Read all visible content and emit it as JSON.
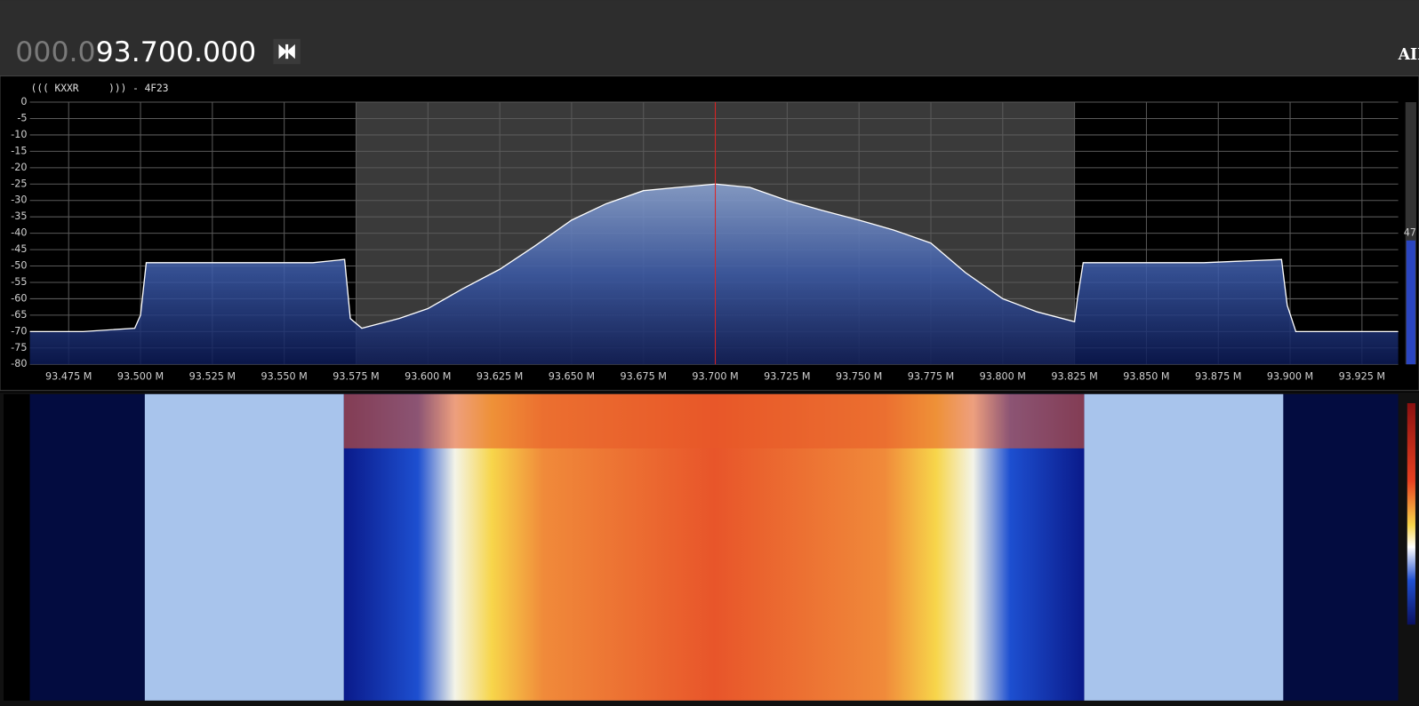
{
  "header": {
    "frequency_dim": "000.0",
    "frequency_bright": "93.700.000",
    "mode_label": "AII"
  },
  "chart_data": {
    "type": "line",
    "title": "((( KXXR     ))) - 4F23",
    "x": [
      93.4615,
      93.48,
      93.498,
      93.5,
      93.502,
      93.52,
      93.54,
      93.56,
      93.571,
      93.573,
      93.577,
      93.59,
      93.6,
      93.612,
      93.625,
      93.637,
      93.65,
      93.662,
      93.675,
      93.687,
      93.7,
      93.712,
      93.725,
      93.737,
      93.75,
      93.762,
      93.775,
      93.787,
      93.8,
      93.812,
      93.825,
      93.826,
      93.828,
      93.85,
      93.87,
      93.897,
      93.899,
      93.902,
      93.92,
      93.9376
    ],
    "values": [
      -70,
      -70,
      -69,
      -65,
      -49,
      -49,
      -49,
      -49,
      -48,
      -66,
      -69,
      -66,
      -63,
      -57,
      -51,
      -44,
      -36,
      -31,
      -27,
      -26,
      -25,
      -26,
      -30,
      -33,
      -36,
      -39,
      -43,
      -52,
      -60,
      -64,
      -67,
      -60,
      -49,
      -49,
      -49,
      -48,
      -62,
      -70,
      -70,
      -70
    ],
    "xlim": [
      93.4615,
      93.9376
    ],
    "ylim": [
      -80,
      0
    ],
    "yticks": [
      0,
      -5,
      -10,
      -15,
      -20,
      -25,
      -30,
      -35,
      -40,
      -45,
      -50,
      -55,
      -60,
      -65,
      -70,
      -75,
      -80
    ],
    "xticks": [
      {
        "value": 93.475,
        "label": "93.475 M"
      },
      {
        "value": 93.5,
        "label": "93.500 M"
      },
      {
        "value": 93.525,
        "label": "93.525 M"
      },
      {
        "value": 93.55,
        "label": "93.550 M"
      },
      {
        "value": 93.575,
        "label": "93.575 M"
      },
      {
        "value": 93.6,
        "label": "93.600 M"
      },
      {
        "value": 93.625,
        "label": "93.625 M"
      },
      {
        "value": 93.65,
        "label": "93.650 M"
      },
      {
        "value": 93.675,
        "label": "93.675 M"
      },
      {
        "value": 93.7,
        "label": "93.700 M"
      },
      {
        "value": 93.725,
        "label": "93.725 M"
      },
      {
        "value": 93.75,
        "label": "93.750 M"
      },
      {
        "value": 93.775,
        "label": "93.775 M"
      },
      {
        "value": 93.8,
        "label": "93.800 M"
      },
      {
        "value": 93.825,
        "label": "93.825 M"
      },
      {
        "value": 93.85,
        "label": "93.850 M"
      },
      {
        "value": 93.875,
        "label": "93.875 M"
      },
      {
        "value": 93.9,
        "label": "93.900 M"
      },
      {
        "value": 93.925,
        "label": "93.925 M"
      }
    ],
    "center_frequency": 93.7,
    "filter_band": [
      93.575,
      93.825
    ],
    "color": "#ffffff",
    "grid": true
  },
  "level_meter": {
    "label": "47"
  }
}
